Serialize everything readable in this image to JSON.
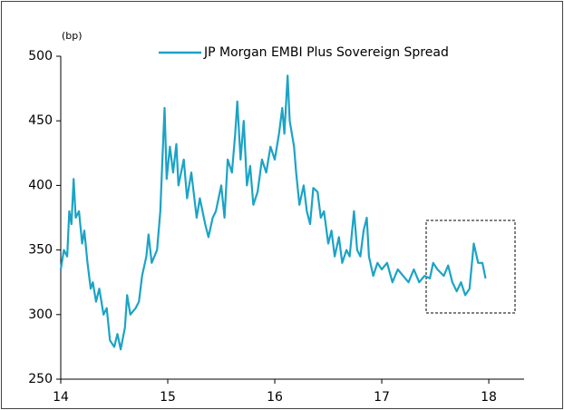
{
  "chart_data": {
    "type": "line",
    "y_axis_label": "(bp)",
    "x": [
      14.0,
      14.03,
      14.06,
      14.08,
      14.1,
      14.12,
      14.14,
      14.17,
      14.2,
      14.22,
      14.25,
      14.28,
      14.3,
      14.33,
      14.36,
      14.4,
      14.43,
      14.46,
      14.5,
      14.53,
      14.56,
      14.6,
      14.62,
      14.65,
      14.7,
      14.73,
      14.76,
      14.8,
      14.82,
      14.85,
      14.9,
      14.93,
      14.95,
      14.97,
      14.99,
      15.02,
      15.05,
      15.08,
      15.1,
      15.15,
      15.18,
      15.22,
      15.27,
      15.3,
      15.35,
      15.38,
      15.42,
      15.45,
      15.5,
      15.53,
      15.56,
      15.6,
      15.63,
      15.65,
      15.68,
      15.71,
      15.74,
      15.77,
      15.8,
      15.84,
      15.88,
      15.92,
      15.96,
      16.0,
      16.04,
      16.07,
      16.09,
      16.12,
      16.14,
      16.18,
      16.2,
      16.23,
      16.27,
      16.3,
      16.33,
      16.36,
      16.4,
      16.43,
      16.46,
      16.5,
      16.53,
      16.56,
      16.6,
      16.63,
      16.67,
      16.7,
      16.74,
      16.77,
      16.8,
      16.83,
      16.86,
      16.88,
      16.92,
      16.96,
      17.0,
      17.05,
      17.1,
      17.15,
      17.2,
      17.25,
      17.3,
      17.35,
      17.4,
      17.45,
      17.48,
      17.52,
      17.58,
      17.62,
      17.66,
      17.7,
      17.74,
      17.78,
      17.82,
      17.86,
      17.9,
      17.94,
      17.97
    ],
    "series": [
      {
        "name": "JP Morgan EMBI Plus Sovereign Spread",
        "color": "#1ba3c6",
        "values": [
          335,
          350,
          345,
          380,
          370,
          405,
          375,
          380,
          355,
          365,
          340,
          320,
          325,
          310,
          320,
          300,
          305,
          280,
          275,
          285,
          273,
          290,
          315,
          300,
          305,
          310,
          330,
          345,
          362,
          340,
          350,
          380,
          420,
          460,
          405,
          430,
          410,
          432,
          400,
          420,
          390,
          410,
          375,
          390,
          370,
          360,
          375,
          380,
          400,
          375,
          420,
          410,
          440,
          465,
          420,
          450,
          400,
          415,
          385,
          395,
          420,
          410,
          430,
          420,
          440,
          460,
          440,
          485,
          450,
          430,
          410,
          385,
          400,
          380,
          370,
          398,
          395,
          375,
          380,
          355,
          365,
          345,
          360,
          340,
          350,
          345,
          380,
          350,
          345,
          365,
          375,
          345,
          330,
          340,
          335,
          340,
          325,
          335,
          330,
          325,
          335,
          325,
          330,
          328,
          340,
          335,
          330,
          338,
          325,
          318,
          325,
          315,
          320,
          355,
          340,
          340,
          328
        ]
      }
    ],
    "xlim": [
      14,
      18.33
    ],
    "xticks": [
      14,
      15,
      16,
      17,
      18
    ],
    "ylim": [
      250,
      500
    ],
    "yticks": [
      250,
      300,
      350,
      400,
      450,
      500
    ],
    "legend": "top-right"
  }
}
